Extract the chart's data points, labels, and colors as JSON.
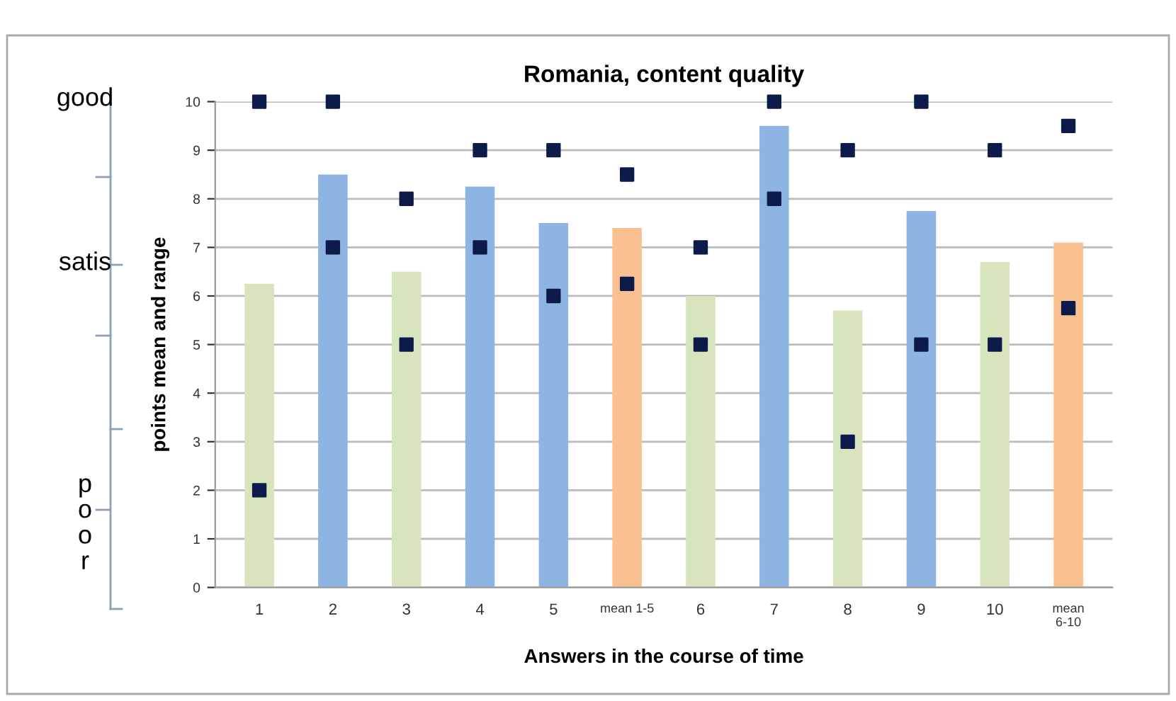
{
  "chart_data": {
    "type": "bar",
    "title": "Romania, content quality",
    "xlabel": "Answers in the course of time",
    "ylabel": "points mean and range",
    "categories": [
      "1",
      "2",
      "3",
      "4",
      "5",
      "mean 1-5",
      "6",
      "7",
      "8",
      "9",
      "10",
      "mean\n6-10"
    ],
    "series": [
      {
        "values": [
          6.25,
          8.5,
          6.5,
          8.25,
          7.5,
          7.4,
          6.0,
          9.5,
          5.7,
          7.75,
          6.7,
          7.1
        ],
        "colors": [
          "#d7e4bd",
          "#8eb4e3",
          "#d7e4bd",
          "#8eb4e3",
          "#8eb4e3",
          "#fac090",
          "#d7e4bd",
          "#8eb4e3",
          "#d7e4bd",
          "#8eb4e3",
          "#d7e4bd",
          "#fac090"
        ]
      },
      {
        "type": "scatter",
        "color": "#0d1b4a",
        "x": [
          "1",
          "2",
          "3",
          "4",
          "5",
          "mean 1-5",
          "6",
          "7",
          "8",
          "9",
          "10",
          "mean\n6-10"
        ],
        "values": [
          10,
          10,
          8,
          9,
          9,
          8.5,
          7,
          10,
          9,
          10,
          9,
          9.5
        ]
      },
      {
        "type": "scatter",
        "color": "#0d1b4a",
        "x": [
          "1",
          "2",
          "3",
          "4",
          "5",
          "mean 1-5",
          "6",
          "7",
          "8",
          "9",
          "10",
          "mean\n6-10"
        ],
        "values": [
          2,
          7,
          5,
          7,
          6,
          6.25,
          5,
          8,
          3,
          5,
          5,
          5.75
        ]
      }
    ],
    "marker": "square",
    "ylim": [
      0,
      10
    ],
    "yticks": [
      0,
      1,
      2,
      3,
      4,
      5,
      6,
      7,
      8,
      9,
      10
    ],
    "grid": "y",
    "legend": false,
    "annotations": [
      "good",
      "satis",
      "poor"
    ]
  }
}
